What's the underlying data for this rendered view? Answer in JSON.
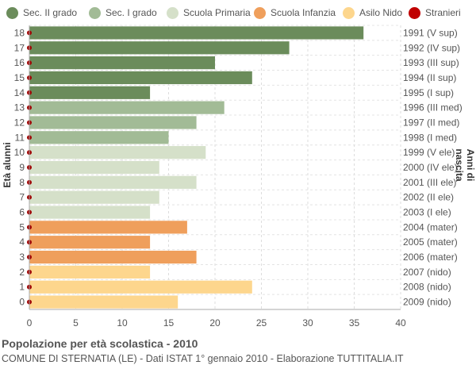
{
  "legend": [
    {
      "label": "Sec. II grado",
      "color": "#6b8c5b"
    },
    {
      "label": "Sec. I grado",
      "color": "#a2bb96"
    },
    {
      "label": "Scuola Primaria",
      "color": "#d5e0c9"
    },
    {
      "label": "Scuola Infanzia",
      "color": "#ef9f5c"
    },
    {
      "label": "Asilo Nido",
      "color": "#fdd68d"
    },
    {
      "label": "Stranieri",
      "color": "#c00000"
    }
  ],
  "chart_data": {
    "type": "bar",
    "orientation": "horizontal",
    "ylabel_left": "Età alunni",
    "ylabel_right": "Anni di nascita",
    "xlim": [
      0,
      40
    ],
    "x_ticks": [
      "0",
      "5",
      "10",
      "15",
      "20",
      "25",
      "30",
      "35",
      "40"
    ],
    "grid": true,
    "legend_position": "top",
    "categories": [
      "18",
      "17",
      "16",
      "15",
      "14",
      "13",
      "12",
      "11",
      "10",
      "9",
      "8",
      "7",
      "6",
      "5",
      "4",
      "3",
      "2",
      "1",
      "0"
    ],
    "birth_years": [
      "1991 (V sup)",
      "1992 (IV sup)",
      "1993 (III sup)",
      "1994 (II sup)",
      "1995 (I sup)",
      "1996 (III med)",
      "1997 (II med)",
      "1998 (I med)",
      "1999 (V ele)",
      "2000 (IV ele)",
      "2001 (III ele)",
      "2002 (II ele)",
      "2003 (I ele)",
      "2004 (mater)",
      "2005 (mater)",
      "2006 (mater)",
      "2007 (nido)",
      "2008 (nido)",
      "2009 (nido)"
    ],
    "values": [
      36,
      28,
      20,
      24,
      13,
      21,
      18,
      15,
      19,
      14,
      18,
      14,
      13,
      17,
      13,
      18,
      13,
      24,
      16
    ],
    "groups": [
      "Sec. II grado",
      "Sec. II grado",
      "Sec. II grado",
      "Sec. II grado",
      "Sec. II grado",
      "Sec. I grado",
      "Sec. I grado",
      "Sec. I grado",
      "Scuola Primaria",
      "Scuola Primaria",
      "Scuola Primaria",
      "Scuola Primaria",
      "Scuola Primaria",
      "Scuola Infanzia",
      "Scuola Infanzia",
      "Scuola Infanzia",
      "Asilo Nido",
      "Asilo Nido",
      "Asilo Nido"
    ],
    "stranieri": [
      0,
      0,
      0,
      0,
      0,
      0,
      0,
      0,
      0,
      0,
      0,
      0,
      0,
      0,
      0,
      0,
      0,
      0,
      0
    ]
  },
  "footer": {
    "title": "Popolazione per età scolastica - 2010",
    "subtitle": "COMUNE DI STERNATIA (LE) - Dati ISTAT 1° gennaio 2010 - Elaborazione TUTTITALIA.IT"
  }
}
